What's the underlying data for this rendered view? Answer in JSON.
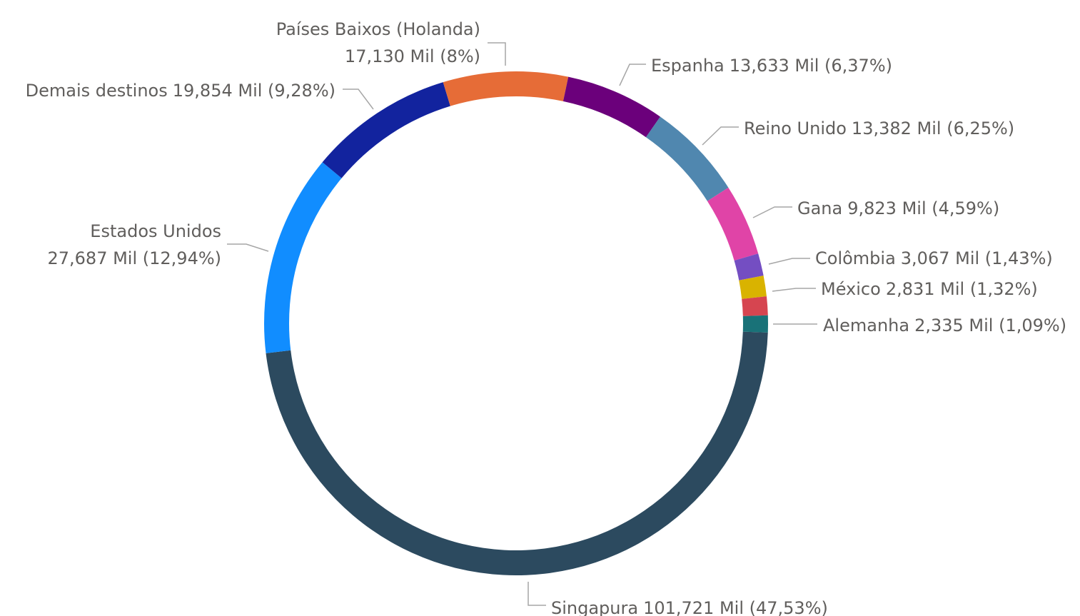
{
  "chart_data": {
    "type": "donut",
    "categories": [
      "Singapura",
      "Estados Unidos",
      "Demais destinos",
      "Países Baixos (Holanda)",
      "Espanha",
      "Reino Unido",
      "Gana",
      "Colômbia",
      "México",
      null,
      "Alemanha"
    ],
    "values": [
      101.721,
      27.687,
      19.854,
      17.13,
      13.633,
      13.382,
      9.823,
      3.067,
      2.831,
      2.57,
      2.335
    ],
    "value_labels": [
      "101,721 Mil (47,53%)",
      "27,687 Mil (12,94%)",
      "19,854 Mil (9,28%)",
      "17,130 Mil (8%)",
      "13,633 Mil (6,37%)",
      "13,382 Mil (6,25%)",
      "9,823 Mil (4,59%)",
      "3,067 Mil (1,43%)",
      "2,831 Mil (1,32%)",
      null,
      "2,335 Mil (1,09%)"
    ],
    "colors": [
      "#2c4a5f",
      "#118dff",
      "#12239e",
      "#e66c37",
      "#6b007b",
      "#5087af",
      "#e044a7",
      "#744ec2",
      "#d9b300",
      "#d64550",
      "#197278"
    ]
  }
}
